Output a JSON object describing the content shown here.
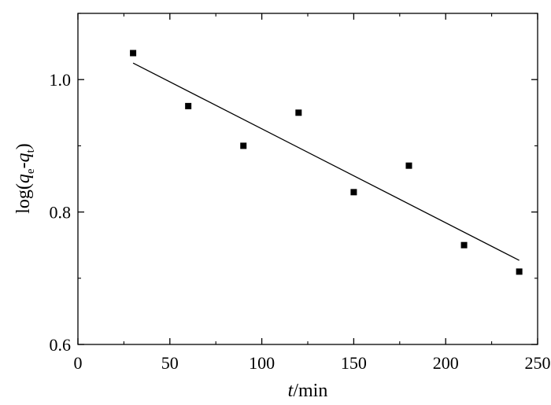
{
  "chart_data": {
    "type": "scatter",
    "xlabel": {
      "var": "t",
      "unit": "/min"
    },
    "ylabel": {
      "prefix": "log(",
      "q1": "q",
      "sub1": "e",
      "dash": "-",
      "q2": "q",
      "sub2": "t",
      "suffix": ")"
    },
    "xlim": [
      0,
      250
    ],
    "ylim": [
      0.6,
      1.1
    ],
    "x_ticks": [
      0,
      50,
      100,
      150,
      200,
      250
    ],
    "x_tick_labels": [
      "0",
      "50",
      "100",
      "150",
      "200",
      "250"
    ],
    "y_ticks": [
      0.6,
      0.8,
      1.0
    ],
    "y_tick_labels": [
      "0.6",
      "0.8",
      "1.0"
    ],
    "series": [
      {
        "marker": "square",
        "color": "#000000",
        "x": [
          30,
          60,
          90,
          120,
          150,
          180,
          210,
          240
        ],
        "y": [
          1.04,
          0.96,
          0.9,
          0.95,
          0.83,
          0.87,
          0.75,
          0.71
        ]
      }
    ],
    "fit_line": {
      "x": [
        30,
        240
      ],
      "y": [
        1.025,
        0.727
      ],
      "color": "#000000"
    },
    "grid": false,
    "legend": "none"
  }
}
